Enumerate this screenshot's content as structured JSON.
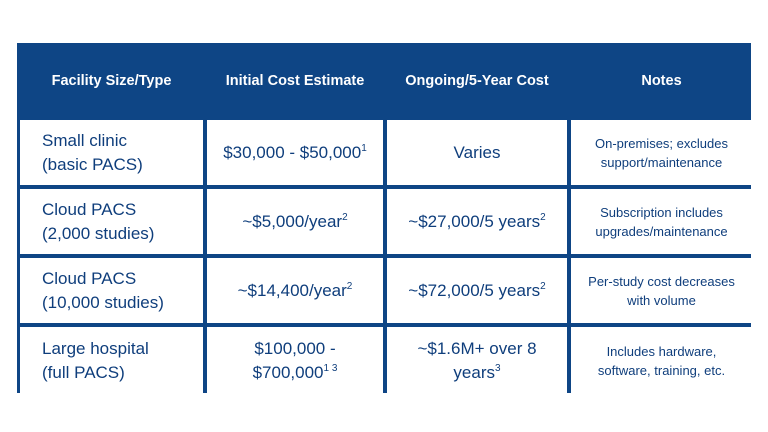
{
  "table": {
    "headers": [
      "Facility Size/Type",
      "Initial Cost Estimate",
      "Ongoing/5-Year Cost",
      "Notes"
    ],
    "rows": [
      {
        "facility_line1": "Small clinic",
        "facility_line2": "(basic PACS)",
        "initial_text": "$30,000 - $50,000",
        "initial_sup": "1",
        "ongoing_text": "Varies",
        "ongoing_sup": "",
        "notes_line1": "On-premises; excludes",
        "notes_line2": "support/maintenance"
      },
      {
        "facility_line1": "Cloud PACS",
        "facility_line2": "(2,000 studies)",
        "initial_text": "~$5,000/year",
        "initial_sup": "2",
        "ongoing_text": "~$27,000/5 years",
        "ongoing_sup": "2",
        "notes_line1": "Subscription includes",
        "notes_line2": "upgrades/maintenance"
      },
      {
        "facility_line1": "Cloud PACS",
        "facility_line2": "(10,000 studies)",
        "initial_text": "~$14,400/year",
        "initial_sup": "2",
        "ongoing_text": "~$72,000/5 years",
        "ongoing_sup": "2",
        "notes_line1": "Per-study cost decreases",
        "notes_line2": "with volume"
      },
      {
        "facility_line1": "Large hospital",
        "facility_line2": "(full PACS)",
        "initial_line1": "$100,000 -",
        "initial_line2": "$700,000",
        "initial_sup": "1 3",
        "ongoing_line1": "~$1.6M+ over 8",
        "ongoing_line2": "years",
        "ongoing_sup": "3",
        "notes_line1": "Includes hardware,",
        "notes_line2": "software, training, etc."
      }
    ]
  },
  "colors": {
    "header_bg": "#0e4585",
    "text": "#0f3e7c",
    "cell_bg": "#ffffff"
  }
}
